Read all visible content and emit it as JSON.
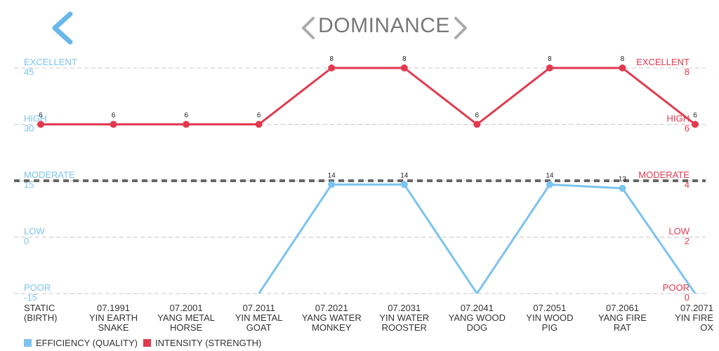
{
  "header": {
    "title": "DOMINANCE"
  },
  "colors": {
    "efficiency": "#7cc3ef",
    "intensity": "#e03a4f",
    "grid": "#c8c8c8",
    "threshold": "#666666",
    "nav": "#aaaaaa",
    "back": "#6ab7ea"
  },
  "chart_data": {
    "type": "line",
    "categories": [
      [
        "STATIC",
        "(BIRTH)"
      ],
      [
        "07.1991",
        "YIN EARTH",
        "SNAKE"
      ],
      [
        "07.2001",
        "YANG METAL",
        "HORSE"
      ],
      [
        "07.2011",
        "YIN METAL",
        "GOAT"
      ],
      [
        "07.2021",
        "YANG WATER",
        "MONKEY"
      ],
      [
        "07.2031",
        "YIN WATER",
        "ROOSTER"
      ],
      [
        "07.2041",
        "YANG WOOD",
        "DOG"
      ],
      [
        "07.2051",
        "YIN WOOD",
        "PIG"
      ],
      [
        "07.2061",
        "YANG FIRE",
        "RAT"
      ],
      [
        "07.2071",
        "YIN FIRE",
        "OX"
      ]
    ],
    "series": [
      {
        "name": "EFFICIENCY (QUALITY)",
        "axis": "left",
        "values": [
          null,
          null,
          null,
          -15,
          14,
          14,
          -15,
          14,
          13,
          -15
        ],
        "labels": [
          "",
          "",
          "",
          "",
          "14",
          "14",
          "",
          "14",
          "13",
          ""
        ]
      },
      {
        "name": "INTENSITY (STRENGTH)",
        "axis": "right",
        "values": [
          6,
          6,
          6,
          6,
          8,
          8,
          6,
          8,
          8,
          6
        ],
        "labels": [
          "6",
          "6",
          "6",
          "6",
          "8",
          "8",
          "6",
          "8",
          "8",
          "6"
        ]
      }
    ],
    "left_axis": {
      "ylim": [
        -15,
        45
      ],
      "ticks": [
        {
          "value": 45,
          "label": "EXCELLENT",
          "num": "45"
        },
        {
          "value": 30,
          "label": "HIGH",
          "num": "30"
        },
        {
          "value": 15,
          "label": "MODERATE",
          "num": "15"
        },
        {
          "value": 0,
          "label": "LOW",
          "num": "0"
        },
        {
          "value": -15,
          "label": "POOR",
          "num": "-15"
        }
      ]
    },
    "right_axis": {
      "ylim": [
        0,
        8
      ],
      "ticks": [
        {
          "value": 8,
          "label": "EXCELLENT",
          "num": "8"
        },
        {
          "value": 6,
          "label": "HIGH",
          "num": "6"
        },
        {
          "value": 4,
          "label": "MODERATE",
          "num": "4"
        },
        {
          "value": 2,
          "label": "LOW",
          "num": "2"
        },
        {
          "value": 0,
          "label": "POOR",
          "num": "0"
        }
      ]
    },
    "threshold": {
      "axis": "right",
      "value": 4,
      "style": "dashed"
    },
    "legend": {
      "placement": "bottom-left"
    }
  }
}
